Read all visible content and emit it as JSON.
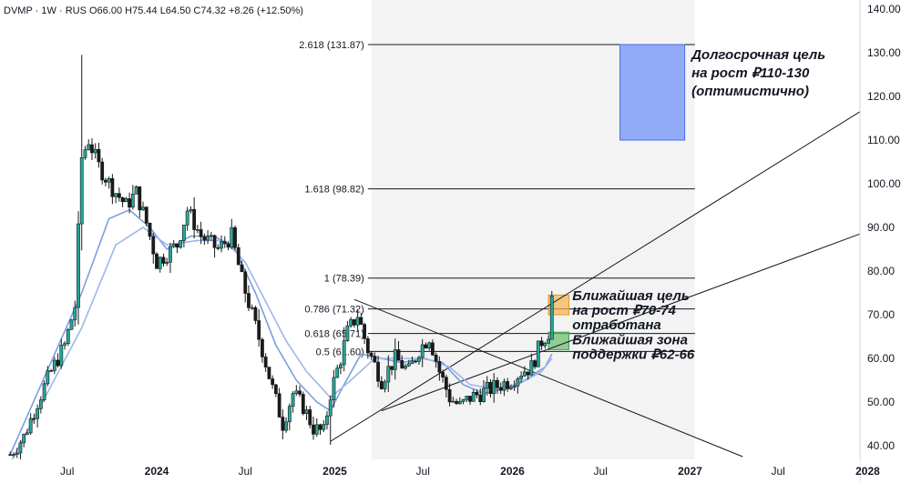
{
  "header": {
    "symbol": "DVMP",
    "separator": "·",
    "interval": "1W",
    "exchange": "RUS",
    "open": "O66.00",
    "high": "H75.44",
    "low": "L64.50",
    "close": "C74.32",
    "change": "+8.26 (+12.50%)"
  },
  "colors": {
    "up": "#26a69a",
    "down": "#1a1a1a",
    "ma_fast": "#7b9fe0",
    "ma_slow": "#9db7ea",
    "target_box": "#7f9ef8",
    "orange_zone": "#f7b24f",
    "green_zone": "#66bb6a",
    "projection_bg": "#f3f3f3"
  },
  "chart_data": {
    "type": "candlestick",
    "price_axis": {
      "min": 36,
      "max": 142,
      "ticks": [
        40,
        50,
        60,
        70,
        80,
        90,
        100,
        110,
        120,
        130,
        140
      ],
      "tick_labels": [
        "40.00",
        "50.00",
        "60.00",
        "70.00",
        "80.00",
        "90.00",
        "100.00",
        "110.00",
        "120.00",
        "130.00",
        "140.00"
      ]
    },
    "time_axis": {
      "labels": [
        {
          "t": "2023-07-01",
          "text": "Jul",
          "bold": false
        },
        {
          "t": "2024-01-01",
          "text": "2024",
          "bold": true
        },
        {
          "t": "2024-07-01",
          "text": "Jul",
          "bold": false
        },
        {
          "t": "2025-01-01",
          "text": "2025",
          "bold": true
        },
        {
          "t": "2025-07-01",
          "text": "Jul",
          "bold": false
        },
        {
          "t": "2026-01-01",
          "text": "2026",
          "bold": true
        },
        {
          "t": "2026-07-01",
          "text": "Jul",
          "bold": false
        },
        {
          "t": "2027-01-01",
          "text": "2027",
          "bold": true
        },
        {
          "t": "2027-07-01",
          "text": "Jul",
          "bold": false
        },
        {
          "t": "2028-01-01",
          "text": "2028",
          "bold": true
        }
      ]
    },
    "series": [
      {
        "name": "price",
        "keypoints": [
          [
            "2023-03-06",
            38
          ],
          [
            "2023-04-03",
            42
          ],
          [
            "2023-05-01",
            50
          ],
          [
            "2023-05-29",
            57
          ],
          [
            "2023-06-26",
            63
          ],
          [
            "2023-07-17",
            72
          ],
          [
            "2023-07-31",
            106
          ],
          [
            "2023-08-14",
            110
          ],
          [
            "2023-09-04",
            104
          ],
          [
            "2023-10-02",
            99
          ],
          [
            "2023-10-30",
            95
          ],
          [
            "2023-11-20",
            98
          ],
          [
            "2023-12-11",
            91
          ],
          [
            "2024-01-01",
            82
          ],
          [
            "2024-01-22",
            84
          ],
          [
            "2024-02-12",
            86
          ],
          [
            "2024-03-04",
            94
          ],
          [
            "2024-04-01",
            88
          ],
          [
            "2024-05-06",
            85
          ],
          [
            "2024-06-03",
            88
          ],
          [
            "2024-06-24",
            78
          ],
          [
            "2024-07-15",
            70
          ],
          [
            "2024-08-05",
            62
          ],
          [
            "2024-08-26",
            53
          ],
          [
            "2024-09-16",
            45
          ],
          [
            "2024-10-07",
            52
          ],
          [
            "2024-10-28",
            49
          ],
          [
            "2024-11-18",
            44
          ],
          [
            "2024-12-09",
            43
          ],
          [
            "2024-12-23",
            52
          ],
          [
            "2025-01-13",
            60
          ],
          [
            "2025-01-27",
            66
          ],
          [
            "2025-02-17",
            70
          ],
          [
            "2025-03-10",
            62
          ],
          [
            "2025-04-07",
            55
          ],
          [
            "2025-05-05",
            60
          ],
          [
            "2025-06-02",
            57
          ],
          [
            "2025-06-23",
            62
          ],
          [
            "2025-07-14",
            65
          ],
          [
            "2025-08-04",
            57
          ],
          [
            "2025-08-25",
            51
          ],
          [
            "2025-09-15",
            49
          ],
          [
            "2025-10-06",
            51
          ],
          [
            "2025-10-27",
            52
          ],
          [
            "2025-11-17",
            53
          ],
          [
            "2025-12-08",
            54
          ],
          [
            "2025-12-29",
            55
          ],
          [
            "2026-01-19",
            57
          ],
          [
            "2026-02-09",
            58
          ],
          [
            "2026-03-02",
            64
          ],
          [
            "2026-03-16",
            66
          ],
          [
            "2026-03-23",
            74.32
          ]
        ]
      },
      {
        "name": "ma-fast",
        "keypoints": [
          [
            "2023-03-06",
            38
          ],
          [
            "2023-07-31",
            75
          ],
          [
            "2023-09-25",
            92
          ],
          [
            "2023-11-06",
            94
          ],
          [
            "2023-12-18",
            90
          ],
          [
            "2024-01-22",
            85
          ],
          [
            "2024-03-11",
            88
          ],
          [
            "2024-04-29",
            88
          ],
          [
            "2024-06-10",
            85
          ],
          [
            "2024-07-22",
            75
          ],
          [
            "2024-09-02",
            63
          ],
          [
            "2024-10-14",
            55
          ],
          [
            "2024-11-25",
            50
          ],
          [
            "2024-12-23",
            48
          ],
          [
            "2025-01-20",
            54
          ],
          [
            "2025-02-24",
            61
          ],
          [
            "2025-04-07",
            60
          ],
          [
            "2025-05-19",
            59
          ],
          [
            "2025-06-30",
            60
          ],
          [
            "2025-08-11",
            59
          ],
          [
            "2025-09-22",
            54
          ],
          [
            "2025-11-03",
            52
          ],
          [
            "2025-12-15",
            53
          ],
          [
            "2026-01-26",
            55
          ],
          [
            "2026-03-09",
            58
          ],
          [
            "2026-03-23",
            61
          ]
        ]
      },
      {
        "name": "ma-slow",
        "keypoints": [
          [
            "2023-03-06",
            36
          ],
          [
            "2023-07-31",
            67
          ],
          [
            "2023-10-09",
            86
          ],
          [
            "2023-12-04",
            90
          ],
          [
            "2024-01-22",
            86
          ],
          [
            "2024-03-25",
            87
          ],
          [
            "2024-05-20",
            87
          ],
          [
            "2024-07-01",
            82
          ],
          [
            "2024-08-12",
            73
          ],
          [
            "2024-09-23",
            64
          ],
          [
            "2024-11-04",
            57
          ],
          [
            "2024-12-23",
            51
          ],
          [
            "2025-02-03",
            55
          ],
          [
            "2025-03-24",
            60
          ],
          [
            "2025-05-19",
            60
          ],
          [
            "2025-07-07",
            60
          ],
          [
            "2025-08-25",
            58
          ],
          [
            "2025-10-06",
            54
          ],
          [
            "2025-11-24",
            53
          ],
          [
            "2026-01-12",
            54
          ],
          [
            "2026-03-02",
            57
          ],
          [
            "2026-03-23",
            60
          ]
        ]
      }
    ],
    "fib_levels": [
      {
        "value": 131.87,
        "label": "2.618 (131.87)"
      },
      {
        "value": 98.82,
        "label": "1.618 (98.82)"
      },
      {
        "value": 78.39,
        "label": "1 (78.39)"
      },
      {
        "value": 71.32,
        "label": "0.786 (71.32)"
      },
      {
        "value": 65.71,
        "label": "0.618 (65.71)"
      },
      {
        "value": 61.6,
        "label": "0.5 (61.60)"
      }
    ],
    "zones": [
      {
        "name": "long-term-target",
        "from": 110,
        "to": 131.87,
        "t0": "2026-08-10",
        "t1": "2026-12-21"
      },
      {
        "name": "near-target",
        "from": 70,
        "to": 74.5,
        "t0": "2026-03-16",
        "t1": "2026-04-27"
      },
      {
        "name": "support",
        "from": 62,
        "to": 66,
        "t0": "2026-03-16",
        "t1": "2026-04-27"
      }
    ],
    "annotations": [
      {
        "lines": [
          "Долгосрочная цель",
          "на рост ₽110-130",
          "(оптимистично)"
        ]
      },
      {
        "lines": [
          "Ближайшая цель",
          "на рост ₽70-74",
          "отработана"
        ]
      },
      {
        "lines": [
          "Ближайшая зона",
          "поддержки ₽62-66"
        ]
      }
    ]
  }
}
